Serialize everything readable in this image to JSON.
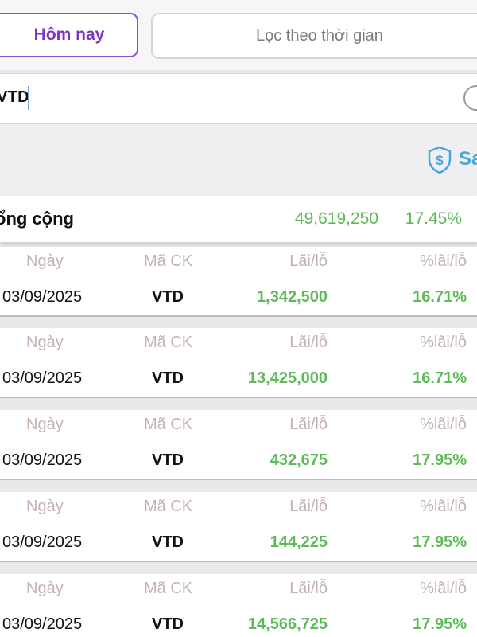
{
  "tabs": {
    "today_label": "Hôm nay",
    "filter_label": "Lọc theo thời gian"
  },
  "search": {
    "value": "VTD"
  },
  "save": {
    "label": "Sa",
    "icon": "shield-dollar-icon"
  },
  "total": {
    "label": "ổng cộng",
    "value": "49,619,250",
    "pct": "17.45%"
  },
  "table": {
    "headers": {
      "date": "Ngày",
      "code": "Mã CK",
      "pl": "Lãi/lỗ",
      "pct": "%lãi/lỗ"
    },
    "rows": [
      {
        "date": "03/09/2025",
        "code": "VTD",
        "pl": "1,342,500",
        "pct": "16.71%"
      },
      {
        "date": "03/09/2025",
        "code": "VTD",
        "pl": "13,425,000",
        "pct": "16.71%"
      },
      {
        "date": "03/09/2025",
        "code": "VTD",
        "pl": "432,675",
        "pct": "17.95%"
      },
      {
        "date": "03/09/2025",
        "code": "VTD",
        "pl": "144,225",
        "pct": "17.95%"
      },
      {
        "date": "03/09/2025",
        "code": "VTD",
        "pl": "14,566,725",
        "pct": "17.95%"
      }
    ]
  },
  "colors": {
    "accent": "#7b35c5",
    "gain": "#5cba57",
    "header_text": "#c2b1b5",
    "save_blue": "#45a7dc"
  }
}
